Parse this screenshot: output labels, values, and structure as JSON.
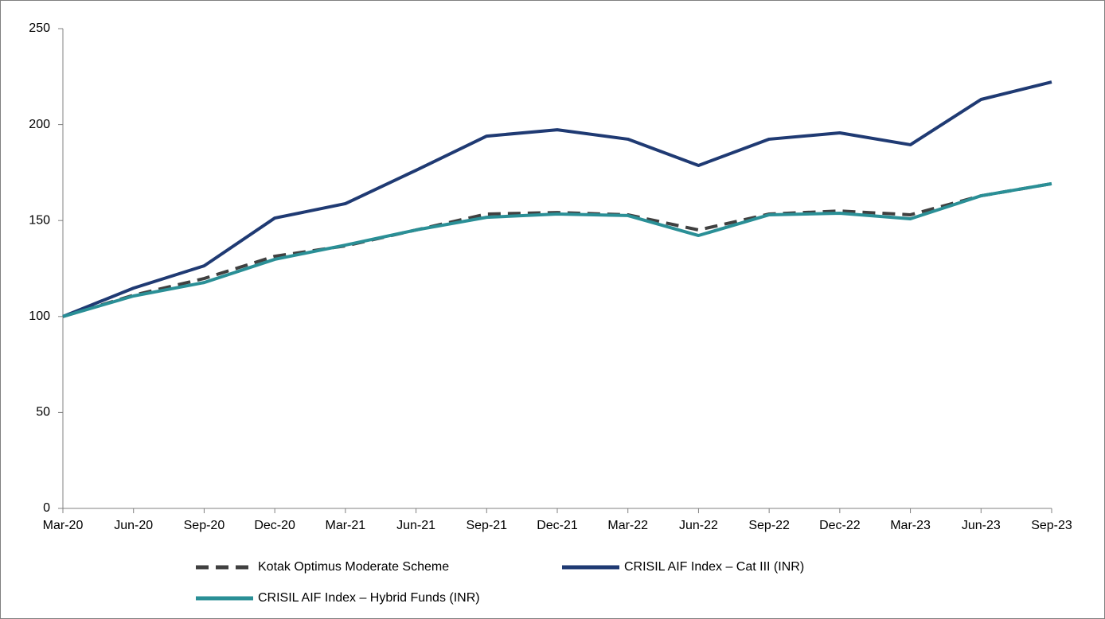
{
  "chart_data": {
    "type": "line",
    "categories": [
      "Mar-20",
      "Jun-20",
      "Sep-20",
      "Dec-20",
      "Mar-21",
      "Jun-21",
      "Sep-21",
      "Dec-21",
      "Mar-22",
      "Jun-22",
      "Sep-22",
      "Dec-22",
      "Mar-23",
      "Jun-23",
      "Sep-23"
    ],
    "series": [
      {
        "name": "Kotak Optimus Moderate Scheme",
        "color": "#404040",
        "dashed": true,
        "values": [
          100,
          111.1,
          119.8,
          131.4,
          136.8,
          145.1,
          153.4,
          154.2,
          153,
          145.1,
          153.4,
          155,
          153,
          162.9,
          169.2
        ]
      },
      {
        "name": "CRISIL AIF Index – Cat III (INR)",
        "color": "#1f3a73",
        "dashed": false,
        "values": [
          100,
          114.8,
          126.4,
          151.3,
          158.8,
          176.2,
          194,
          197.3,
          192.4,
          178.7,
          192.4,
          195.7,
          189.5,
          213.1,
          222.2
        ]
      },
      {
        "name": "CRISIL AIF Index – Hybrid Funds (INR)",
        "color": "#2a8f96",
        "dashed": false,
        "values": [
          100,
          110.7,
          117.7,
          129.8,
          137.2,
          145.1,
          151.7,
          153.4,
          152.6,
          142.2,
          153,
          153.8,
          150.9,
          162.9,
          169.2
        ]
      }
    ],
    "ylim": [
      0,
      250
    ],
    "yticks": [
      0,
      50,
      100,
      150,
      200,
      250
    ],
    "grid": false
  }
}
